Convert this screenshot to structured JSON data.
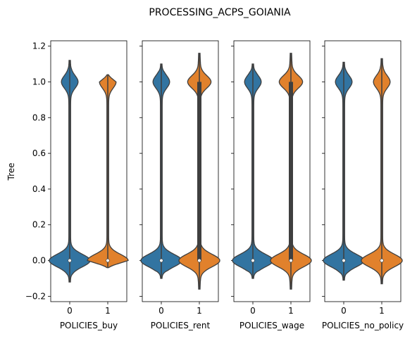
{
  "chart_data": {
    "type": "violin",
    "title": "PROCESSING_ACPS_GOIANIA",
    "ylabel": "Tree",
    "ylim": [
      -0.23,
      1.23
    ],
    "yticks": [
      -0.2,
      0.0,
      0.2,
      0.4,
      0.6,
      0.8,
      1.0,
      1.2
    ],
    "ytick_labels": [
      "−0.2",
      "0.0",
      "0.2",
      "0.4",
      "0.6",
      "0.8",
      "1.0",
      "1.2"
    ],
    "shared_y": true,
    "categories": [
      "0",
      "1"
    ],
    "colors": [
      "#3274a1",
      "#e1812c"
    ],
    "panels": [
      {
        "xlabel": "POLICIES_buy",
        "violins": [
          {
            "category": "0",
            "min": -0.12,
            "max": 1.12,
            "median": 0.0,
            "q1": 0.0,
            "q3": 0.0
          },
          {
            "category": "1",
            "min": -0.04,
            "max": 1.04,
            "median": 0.0,
            "q1": 0.0,
            "q3": 0.0
          }
        ]
      },
      {
        "xlabel": "POLICIES_rent",
        "violins": [
          {
            "category": "0",
            "min": -0.1,
            "max": 1.1,
            "median": 0.0,
            "q1": 0.0,
            "q3": 0.0
          },
          {
            "category": "1",
            "min": -0.16,
            "max": 1.16,
            "median": 0.0,
            "q1": 0.0,
            "q3": 1.0
          }
        ]
      },
      {
        "xlabel": "POLICIES_wage",
        "violins": [
          {
            "category": "0",
            "min": -0.1,
            "max": 1.1,
            "median": 0.0,
            "q1": 0.0,
            "q3": 0.0
          },
          {
            "category": "1",
            "min": -0.16,
            "max": 1.16,
            "median": 0.0,
            "q1": 0.0,
            "q3": 1.0
          }
        ]
      },
      {
        "xlabel": "POLICIES_no_policy",
        "violins": [
          {
            "category": "0",
            "min": -0.11,
            "max": 1.11,
            "median": 0.0,
            "q1": 0.0,
            "q3": 0.0
          },
          {
            "category": "1",
            "min": -0.13,
            "max": 1.13,
            "median": 0.0,
            "q1": 0.0,
            "q3": 0.0
          }
        ]
      }
    ]
  }
}
